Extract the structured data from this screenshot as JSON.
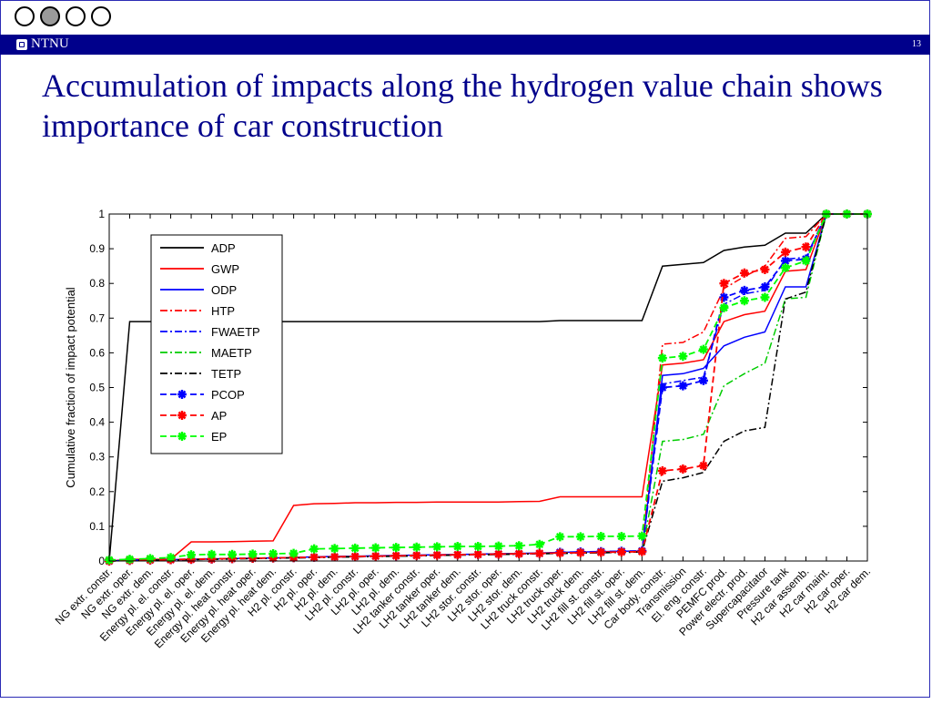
{
  "slide": {
    "nav_indicators": [
      false,
      true,
      false,
      false
    ],
    "header": {
      "brand": "NTNU",
      "page_number": "13"
    },
    "title": "Accumulation of impacts along the hydrogen value chain shows importance of car construction"
  },
  "chart_data": {
    "type": "line",
    "title": "",
    "xlabel": "",
    "ylabel": "Cumulative fraction of impact potential",
    "ylim": [
      0,
      1
    ],
    "yticks": [
      0,
      0.1,
      0.2,
      0.3,
      0.4,
      0.5,
      0.6,
      0.7,
      0.8,
      0.9,
      1
    ],
    "ytick_labels": [
      "0",
      "0.1",
      "0.2",
      "0.3",
      "0.4",
      "0.5",
      "0.6",
      "0.7",
      "0.8",
      "0.9",
      "1"
    ],
    "grid": false,
    "legend_position": "top-left",
    "categories": [
      "NG extr. constr.",
      "NG extr. oper.",
      "NG extr. dem.",
      "Energy pl. el. constr.",
      "Energy pl. el. oper.",
      "Energy pl. el. dem.",
      "Energy pl. heat constr.",
      "Energy pl. heat oper.",
      "Energy pl. heat dem.",
      "H2 pl. constr.",
      "H2 pl. oper.",
      "H2 pl. dem.",
      "LH2 pl. constr.",
      "LH2 pl. oper.",
      "LH2 pl. dem.",
      "LH2 tanker constr.",
      "LH2 tanker oper.",
      "LH2 tanker dem.",
      "LH2 stor. constr.",
      "LH2 stor. oper.",
      "LH2 stor. dem.",
      "LH2 truck constr.",
      "LH2 truck oper.",
      "LH2 truck dem.",
      "LH2 fill st. constr.",
      "LH2 fill st. oper.",
      "LH2 fill st. dem.",
      "Car body. constr.",
      "Transmission",
      "El. eng. constr.",
      "PEMFC prod.",
      "Power electr. prod.",
      "Supercapacitator",
      "Pressure tank",
      "H2 car assemb.",
      "H2 car maint.",
      "H2 car oper.",
      "H2 car dem."
    ],
    "series": [
      {
        "name": "ADP",
        "color": "#000000",
        "dash": "solid",
        "marker": false,
        "values": [
          0.0,
          0.69,
          0.69,
          0.69,
          0.69,
          0.69,
          0.69,
          0.69,
          0.69,
          0.69,
          0.69,
          0.69,
          0.69,
          0.69,
          0.69,
          0.69,
          0.69,
          0.69,
          0.69,
          0.69,
          0.69,
          0.69,
          0.693,
          0.693,
          0.693,
          0.693,
          0.693,
          0.85,
          0.855,
          0.86,
          0.895,
          0.905,
          0.91,
          0.945,
          0.945,
          1.0,
          1.0,
          1.0
        ]
      },
      {
        "name": "GWP",
        "color": "#ff0000",
        "dash": "solid",
        "marker": false,
        "values": [
          0.0,
          0.005,
          0.005,
          0.005,
          0.055,
          0.055,
          0.056,
          0.057,
          0.058,
          0.16,
          0.165,
          0.166,
          0.168,
          0.168,
          0.169,
          0.169,
          0.17,
          0.17,
          0.17,
          0.17,
          0.171,
          0.172,
          0.185,
          0.185,
          0.185,
          0.185,
          0.185,
          0.565,
          0.57,
          0.58,
          0.69,
          0.71,
          0.72,
          0.835,
          0.84,
          1.0,
          1.0,
          1.0
        ]
      },
      {
        "name": "ODP",
        "color": "#0000ff",
        "dash": "solid",
        "marker": false,
        "values": [
          0.0,
          0.003,
          0.003,
          0.004,
          0.005,
          0.006,
          0.007,
          0.008,
          0.009,
          0.01,
          0.012,
          0.013,
          0.014,
          0.015,
          0.016,
          0.017,
          0.018,
          0.019,
          0.02,
          0.021,
          0.022,
          0.023,
          0.025,
          0.026,
          0.027,
          0.028,
          0.029,
          0.535,
          0.54,
          0.555,
          0.62,
          0.645,
          0.66,
          0.79,
          0.79,
          1.0,
          1.0,
          1.0
        ]
      },
      {
        "name": "HTP",
        "color": "#ff0000",
        "dash": "dashdot",
        "marker": false,
        "values": [
          0.0,
          0.002,
          0.002,
          0.003,
          0.005,
          0.006,
          0.007,
          0.008,
          0.009,
          0.01,
          0.011,
          0.012,
          0.013,
          0.014,
          0.015,
          0.016,
          0.017,
          0.018,
          0.019,
          0.02,
          0.021,
          0.022,
          0.024,
          0.025,
          0.026,
          0.027,
          0.028,
          0.625,
          0.63,
          0.66,
          0.785,
          0.82,
          0.85,
          0.93,
          0.935,
          1.0,
          1.0,
          1.0
        ]
      },
      {
        "name": "FWAETP",
        "color": "#0000ff",
        "dash": "dashdot",
        "marker": false,
        "values": [
          0.0,
          0.002,
          0.002,
          0.003,
          0.004,
          0.005,
          0.006,
          0.007,
          0.008,
          0.009,
          0.01,
          0.011,
          0.012,
          0.013,
          0.014,
          0.015,
          0.016,
          0.017,
          0.018,
          0.019,
          0.02,
          0.021,
          0.022,
          0.023,
          0.024,
          0.025,
          0.026,
          0.51,
          0.52,
          0.53,
          0.74,
          0.77,
          0.78,
          0.87,
          0.875,
          1.0,
          1.0,
          1.0
        ]
      },
      {
        "name": "MAETP",
        "color": "#00cc00",
        "dash": "dashdot",
        "marker": false,
        "values": [
          0.0,
          0.002,
          0.002,
          0.003,
          0.004,
          0.005,
          0.006,
          0.007,
          0.008,
          0.009,
          0.01,
          0.011,
          0.012,
          0.013,
          0.014,
          0.015,
          0.016,
          0.017,
          0.018,
          0.019,
          0.02,
          0.021,
          0.022,
          0.023,
          0.024,
          0.025,
          0.026,
          0.345,
          0.35,
          0.365,
          0.505,
          0.54,
          0.57,
          0.755,
          0.76,
          1.0,
          1.0,
          1.0
        ]
      },
      {
        "name": "TETP",
        "color": "#000000",
        "dash": "dashdot",
        "marker": false,
        "values": [
          0.0,
          0.002,
          0.002,
          0.003,
          0.004,
          0.005,
          0.006,
          0.007,
          0.008,
          0.009,
          0.01,
          0.011,
          0.012,
          0.013,
          0.014,
          0.015,
          0.016,
          0.017,
          0.018,
          0.019,
          0.02,
          0.021,
          0.022,
          0.023,
          0.024,
          0.025,
          0.026,
          0.23,
          0.24,
          0.255,
          0.345,
          0.375,
          0.385,
          0.755,
          0.775,
          1.0,
          1.0,
          1.0
        ]
      },
      {
        "name": "PCOP",
        "color": "#0000ff",
        "dash": "dashed",
        "marker": true,
        "values": [
          0.0,
          0.002,
          0.003,
          0.004,
          0.005,
          0.006,
          0.007,
          0.008,
          0.009,
          0.01,
          0.011,
          0.012,
          0.013,
          0.014,
          0.015,
          0.016,
          0.017,
          0.018,
          0.019,
          0.02,
          0.021,
          0.022,
          0.025,
          0.026,
          0.027,
          0.028,
          0.029,
          0.5,
          0.505,
          0.52,
          0.76,
          0.78,
          0.79,
          0.865,
          0.87,
          1.0,
          1.0,
          1.0
        ]
      },
      {
        "name": "AP",
        "color": "#ff0000",
        "dash": "dashed",
        "marker": true,
        "values": [
          0.0,
          0.002,
          0.003,
          0.004,
          0.005,
          0.006,
          0.007,
          0.008,
          0.009,
          0.01,
          0.011,
          0.012,
          0.013,
          0.014,
          0.015,
          0.016,
          0.017,
          0.018,
          0.019,
          0.02,
          0.021,
          0.022,
          0.023,
          0.024,
          0.025,
          0.026,
          0.027,
          0.26,
          0.265,
          0.275,
          0.8,
          0.83,
          0.84,
          0.89,
          0.905,
          1.0,
          1.0,
          1.0
        ]
      },
      {
        "name": "EP",
        "color": "#00ff00",
        "dash": "dashed",
        "marker": true,
        "values": [
          0.003,
          0.005,
          0.007,
          0.01,
          0.018,
          0.019,
          0.019,
          0.02,
          0.021,
          0.022,
          0.035,
          0.036,
          0.037,
          0.038,
          0.039,
          0.04,
          0.041,
          0.042,
          0.042,
          0.043,
          0.044,
          0.048,
          0.07,
          0.07,
          0.071,
          0.071,
          0.072,
          0.585,
          0.59,
          0.61,
          0.73,
          0.75,
          0.76,
          0.845,
          0.865,
          1.0,
          1.0,
          1.0
        ]
      }
    ]
  }
}
